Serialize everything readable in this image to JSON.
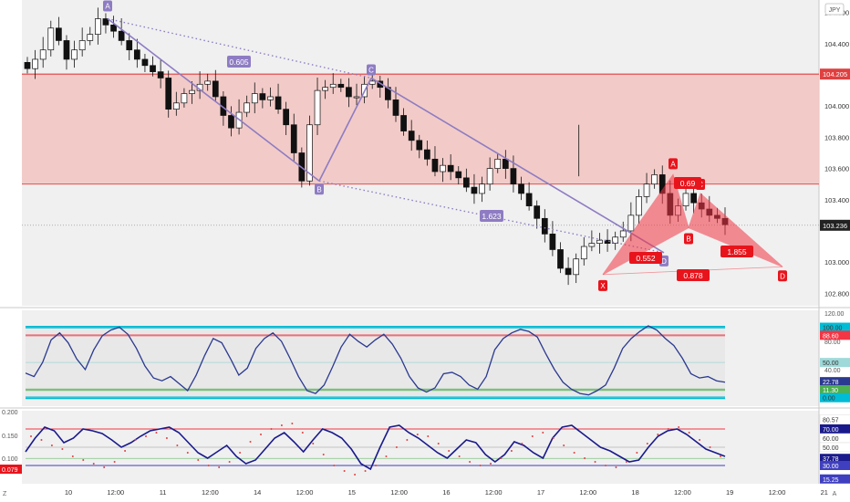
{
  "chart_data": {
    "type": "candlestick",
    "symbol_currency": "JPY",
    "x_ticks": [
      "10",
      "12:00",
      "11",
      "12:00",
      "14",
      "12:00",
      "15",
      "12:00",
      "16",
      "12:00",
      "17",
      "12:00",
      "18",
      "12:00",
      "19",
      "12:00",
      "21",
      "12:00"
    ],
    "price_axis": {
      "ticks": [
        "104.600",
        "104.400",
        "104.000",
        "103.800",
        "103.600",
        "103.400",
        "103.000",
        "102.800"
      ],
      "range": [
        102.72,
        104.68
      ],
      "current_price": "103.236",
      "resistance_line": "104.205"
    },
    "zone": {
      "from": 103.5,
      "to": 104.205,
      "color": "#f2c4c1"
    },
    "close_series": [
      104.24,
      104.3,
      104.36,
      104.5,
      104.42,
      104.3,
      104.36,
      104.42,
      104.46,
      104.56,
      104.52,
      104.48,
      104.42,
      104.36,
      104.3,
      104.26,
      104.22,
      104.18,
      103.98,
      104.02,
      104.08,
      104.1,
      104.14,
      104.16,
      104.06,
      103.94,
      103.86,
      103.96,
      104.02,
      104.08,
      104.04,
      104.06,
      103.98,
      103.88,
      103.7,
      103.52,
      103.88,
      104.1,
      104.12,
      104.14,
      104.12,
      104.06,
      104.06,
      104.14,
      104.16,
      104.12,
      104.04,
      103.94,
      103.84,
      103.78,
      103.72,
      103.66,
      103.58,
      103.62,
      103.58,
      103.54,
      103.48,
      103.44,
      103.5,
      103.6,
      103.66,
      103.6,
      103.5,
      103.44,
      103.36,
      103.28,
      103.18,
      103.08,
      102.96,
      102.92,
      103.02,
      103.1,
      103.12,
      103.14,
      103.12,
      103.16,
      103.2,
      103.3,
      103.42,
      103.5,
      103.56,
      103.44,
      103.3,
      103.36,
      103.44,
      103.38,
      103.34,
      103.3,
      103.28,
      103.24
    ],
    "pattern_1": {
      "points": [
        {
          "label": "A",
          "price": 104.56
        },
        {
          "label": "B",
          "price": 103.52
        },
        {
          "label": "C",
          "price": 104.18
        },
        {
          "label": "D",
          "price": 103.06
        }
      ],
      "ratios": [
        "0.605",
        "1.623"
      ],
      "color": "#8e7cc3"
    },
    "pattern_2": {
      "points": [
        {
          "label": "X",
          "price": 102.92
        },
        {
          "label": "A",
          "price": 103.56
        },
        {
          "label": "B",
          "price": 103.22
        },
        {
          "label": "C",
          "price": 103.44
        },
        {
          "label": "D",
          "price": 102.97
        }
      ],
      "ratios": [
        "0.69",
        "0.552",
        "1.855",
        "0.878"
      ],
      "color": "#f23645"
    },
    "osc1": {
      "axis_ticks": [
        "120.00",
        "80.00",
        "40.00",
        "0.00"
      ],
      "levels": [
        "100.00",
        "88.60",
        "50.00",
        "22.78",
        "11.30",
        "0.00"
      ],
      "level_values": [
        100,
        88.6,
        50,
        22.78,
        11.3,
        0
      ],
      "range": [
        -12,
        124
      ],
      "values": [
        35,
        30,
        50,
        82,
        92,
        78,
        55,
        40,
        68,
        88,
        96,
        100,
        90,
        70,
        45,
        28,
        24,
        30,
        20,
        10,
        32,
        60,
        84,
        78,
        56,
        32,
        42,
        70,
        84,
        92,
        80,
        56,
        30,
        10,
        6,
        18,
        44,
        72,
        90,
        80,
        72,
        82,
        90,
        76,
        56,
        30,
        14,
        8,
        14,
        34,
        36,
        30,
        18,
        12,
        30,
        68,
        84,
        92,
        97,
        94,
        86,
        62,
        40,
        22,
        12,
        6,
        4,
        10,
        18,
        42,
        70,
        84,
        94,
        102,
        96,
        84,
        74,
        56,
        34,
        28,
        30,
        24,
        22
      ]
    },
    "osc2": {
      "axis_ticks": [
        "0.200",
        "0.150",
        "0.100"
      ],
      "left_value": "0.079",
      "right_levels": [
        "80.57",
        "70.00",
        "60.00",
        "50.00",
        "37.78",
        "30.00",
        "15.25"
      ],
      "right_ticks": [
        "80.00",
        "40.00"
      ],
      "level_70": 70,
      "level_50": 50,
      "level_30": 30,
      "range": [
        10,
        90
      ],
      "values": [
        45,
        60,
        72,
        68,
        55,
        60,
        70,
        68,
        65,
        58,
        50,
        55,
        62,
        68,
        70,
        72,
        66,
        55,
        44,
        38,
        45,
        52,
        40,
        32,
        36,
        48,
        60,
        66,
        56,
        45,
        58,
        70,
        66,
        60,
        48,
        32,
        26,
        50,
        72,
        74,
        66,
        60,
        52,
        44,
        38,
        48,
        58,
        55,
        42,
        34,
        42,
        56,
        52,
        44,
        38,
        60,
        72,
        74,
        66,
        58,
        50,
        46,
        40,
        34,
        36,
        50,
        62,
        68,
        70,
        64,
        56,
        48,
        44,
        40
      ],
      "dots_values": [
        62,
        58,
        52,
        48,
        40,
        36,
        32,
        28,
        34,
        46,
        58,
        62,
        66,
        60,
        52,
        44,
        36,
        30,
        28,
        34,
        44,
        56,
        64,
        70,
        74,
        76,
        66,
        54,
        42,
        30,
        24,
        20,
        24,
        30,
        40,
        50,
        58,
        64,
        62,
        54,
        46,
        40,
        34,
        30,
        32,
        38,
        46,
        54,
        62,
        66,
        60,
        52,
        44,
        38,
        34,
        30,
        28,
        34,
        44,
        54,
        64,
        70,
        72,
        66,
        58,
        50,
        40
      ]
    },
    "bottom_labels": [
      "Z",
      "A"
    ]
  }
}
